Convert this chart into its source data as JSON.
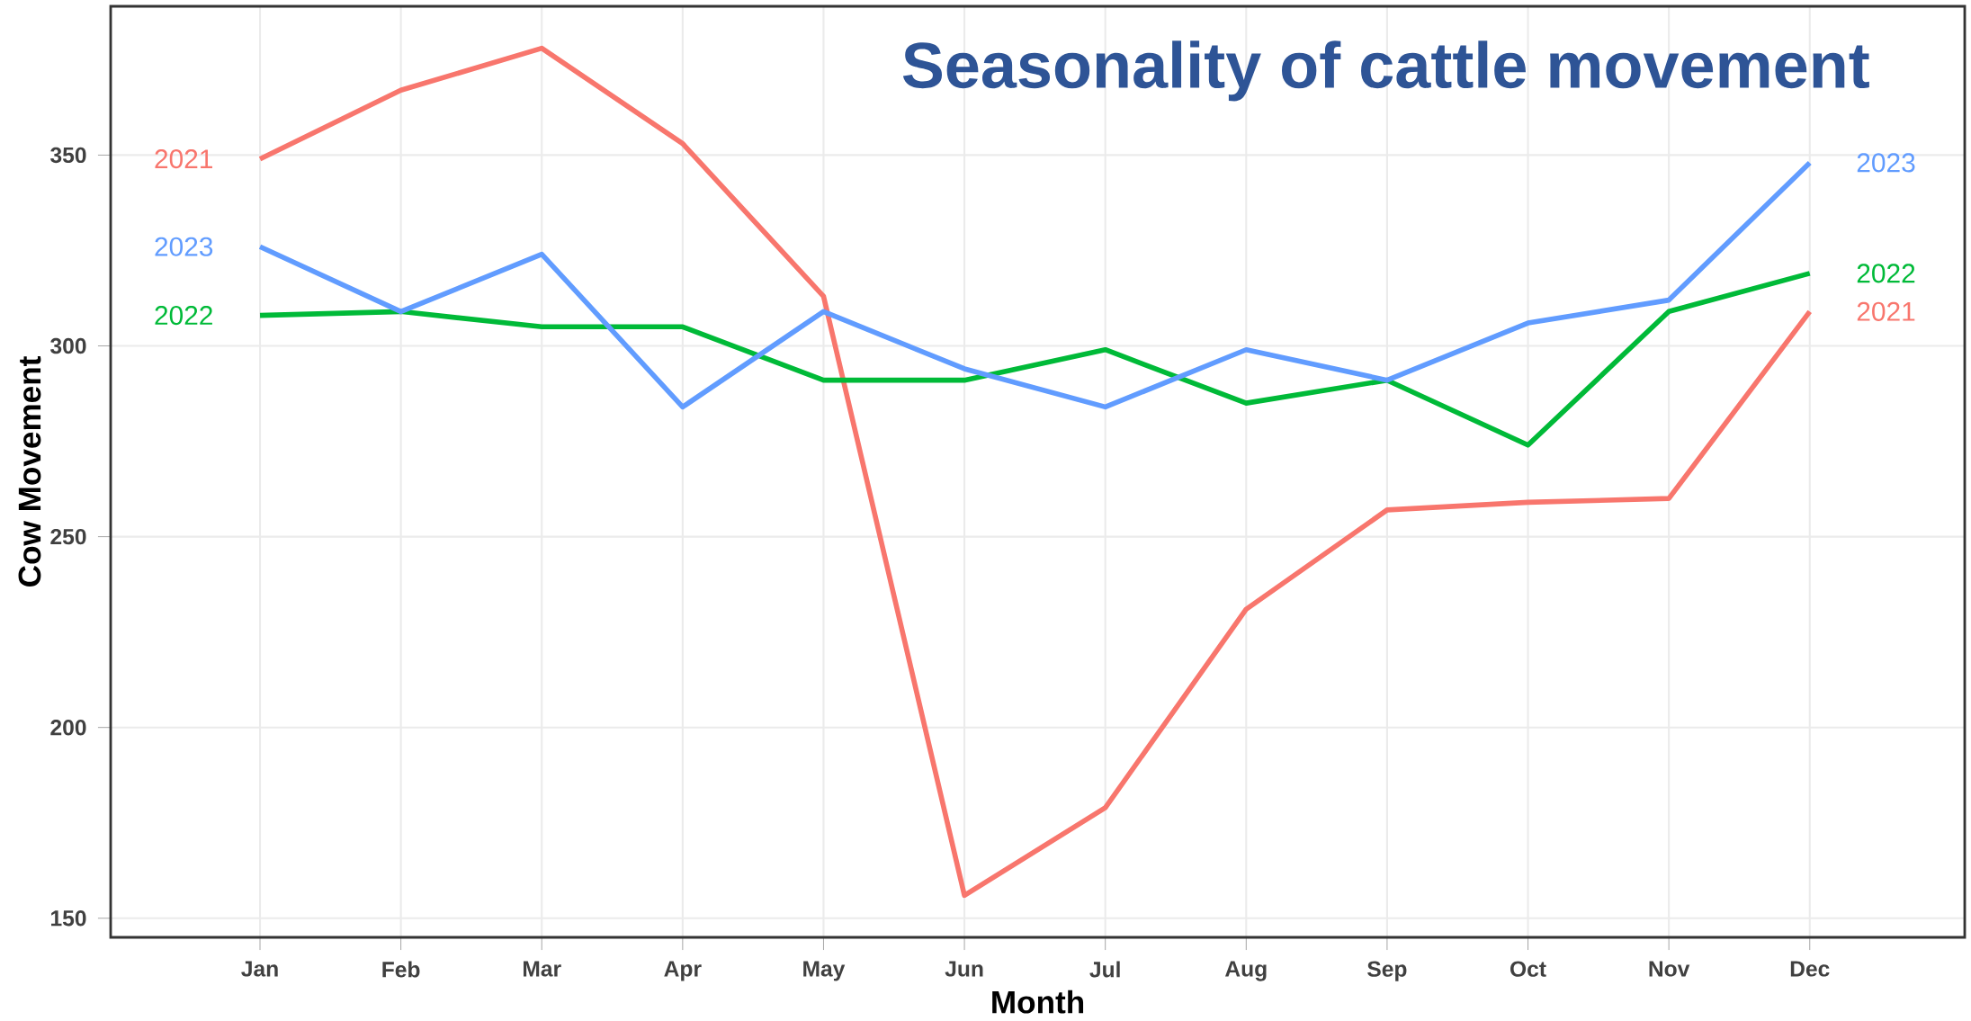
{
  "chart_data": {
    "type": "line",
    "title": "Seasonality of cattle movement",
    "xlabel": "Month",
    "ylabel": "Cow Movement",
    "categories": [
      "Jan",
      "Feb",
      "Mar",
      "Apr",
      "May",
      "Jun",
      "Jul",
      "Aug",
      "Sep",
      "Oct",
      "Nov",
      "Dec"
    ],
    "series": [
      {
        "name": "2021",
        "color": "#f8766d",
        "values": [
          349,
          367,
          378,
          353,
          313,
          156,
          179,
          231,
          257,
          259,
          260,
          309
        ]
      },
      {
        "name": "2022",
        "color": "#00ba38",
        "values": [
          308,
          309,
          305,
          305,
          291,
          291,
          299,
          285,
          291,
          274,
          309,
          319
        ]
      },
      {
        "name": "2023",
        "color": "#619cff",
        "values": [
          326,
          309,
          324,
          284,
          309,
          294,
          284,
          299,
          291,
          306,
          312,
          348
        ]
      }
    ],
    "ylim": [
      145,
      389
    ],
    "yticks": [
      150,
      200,
      250,
      300,
      350
    ],
    "grid": true,
    "legend": false,
    "marker": "none",
    "line_style": "solid"
  }
}
